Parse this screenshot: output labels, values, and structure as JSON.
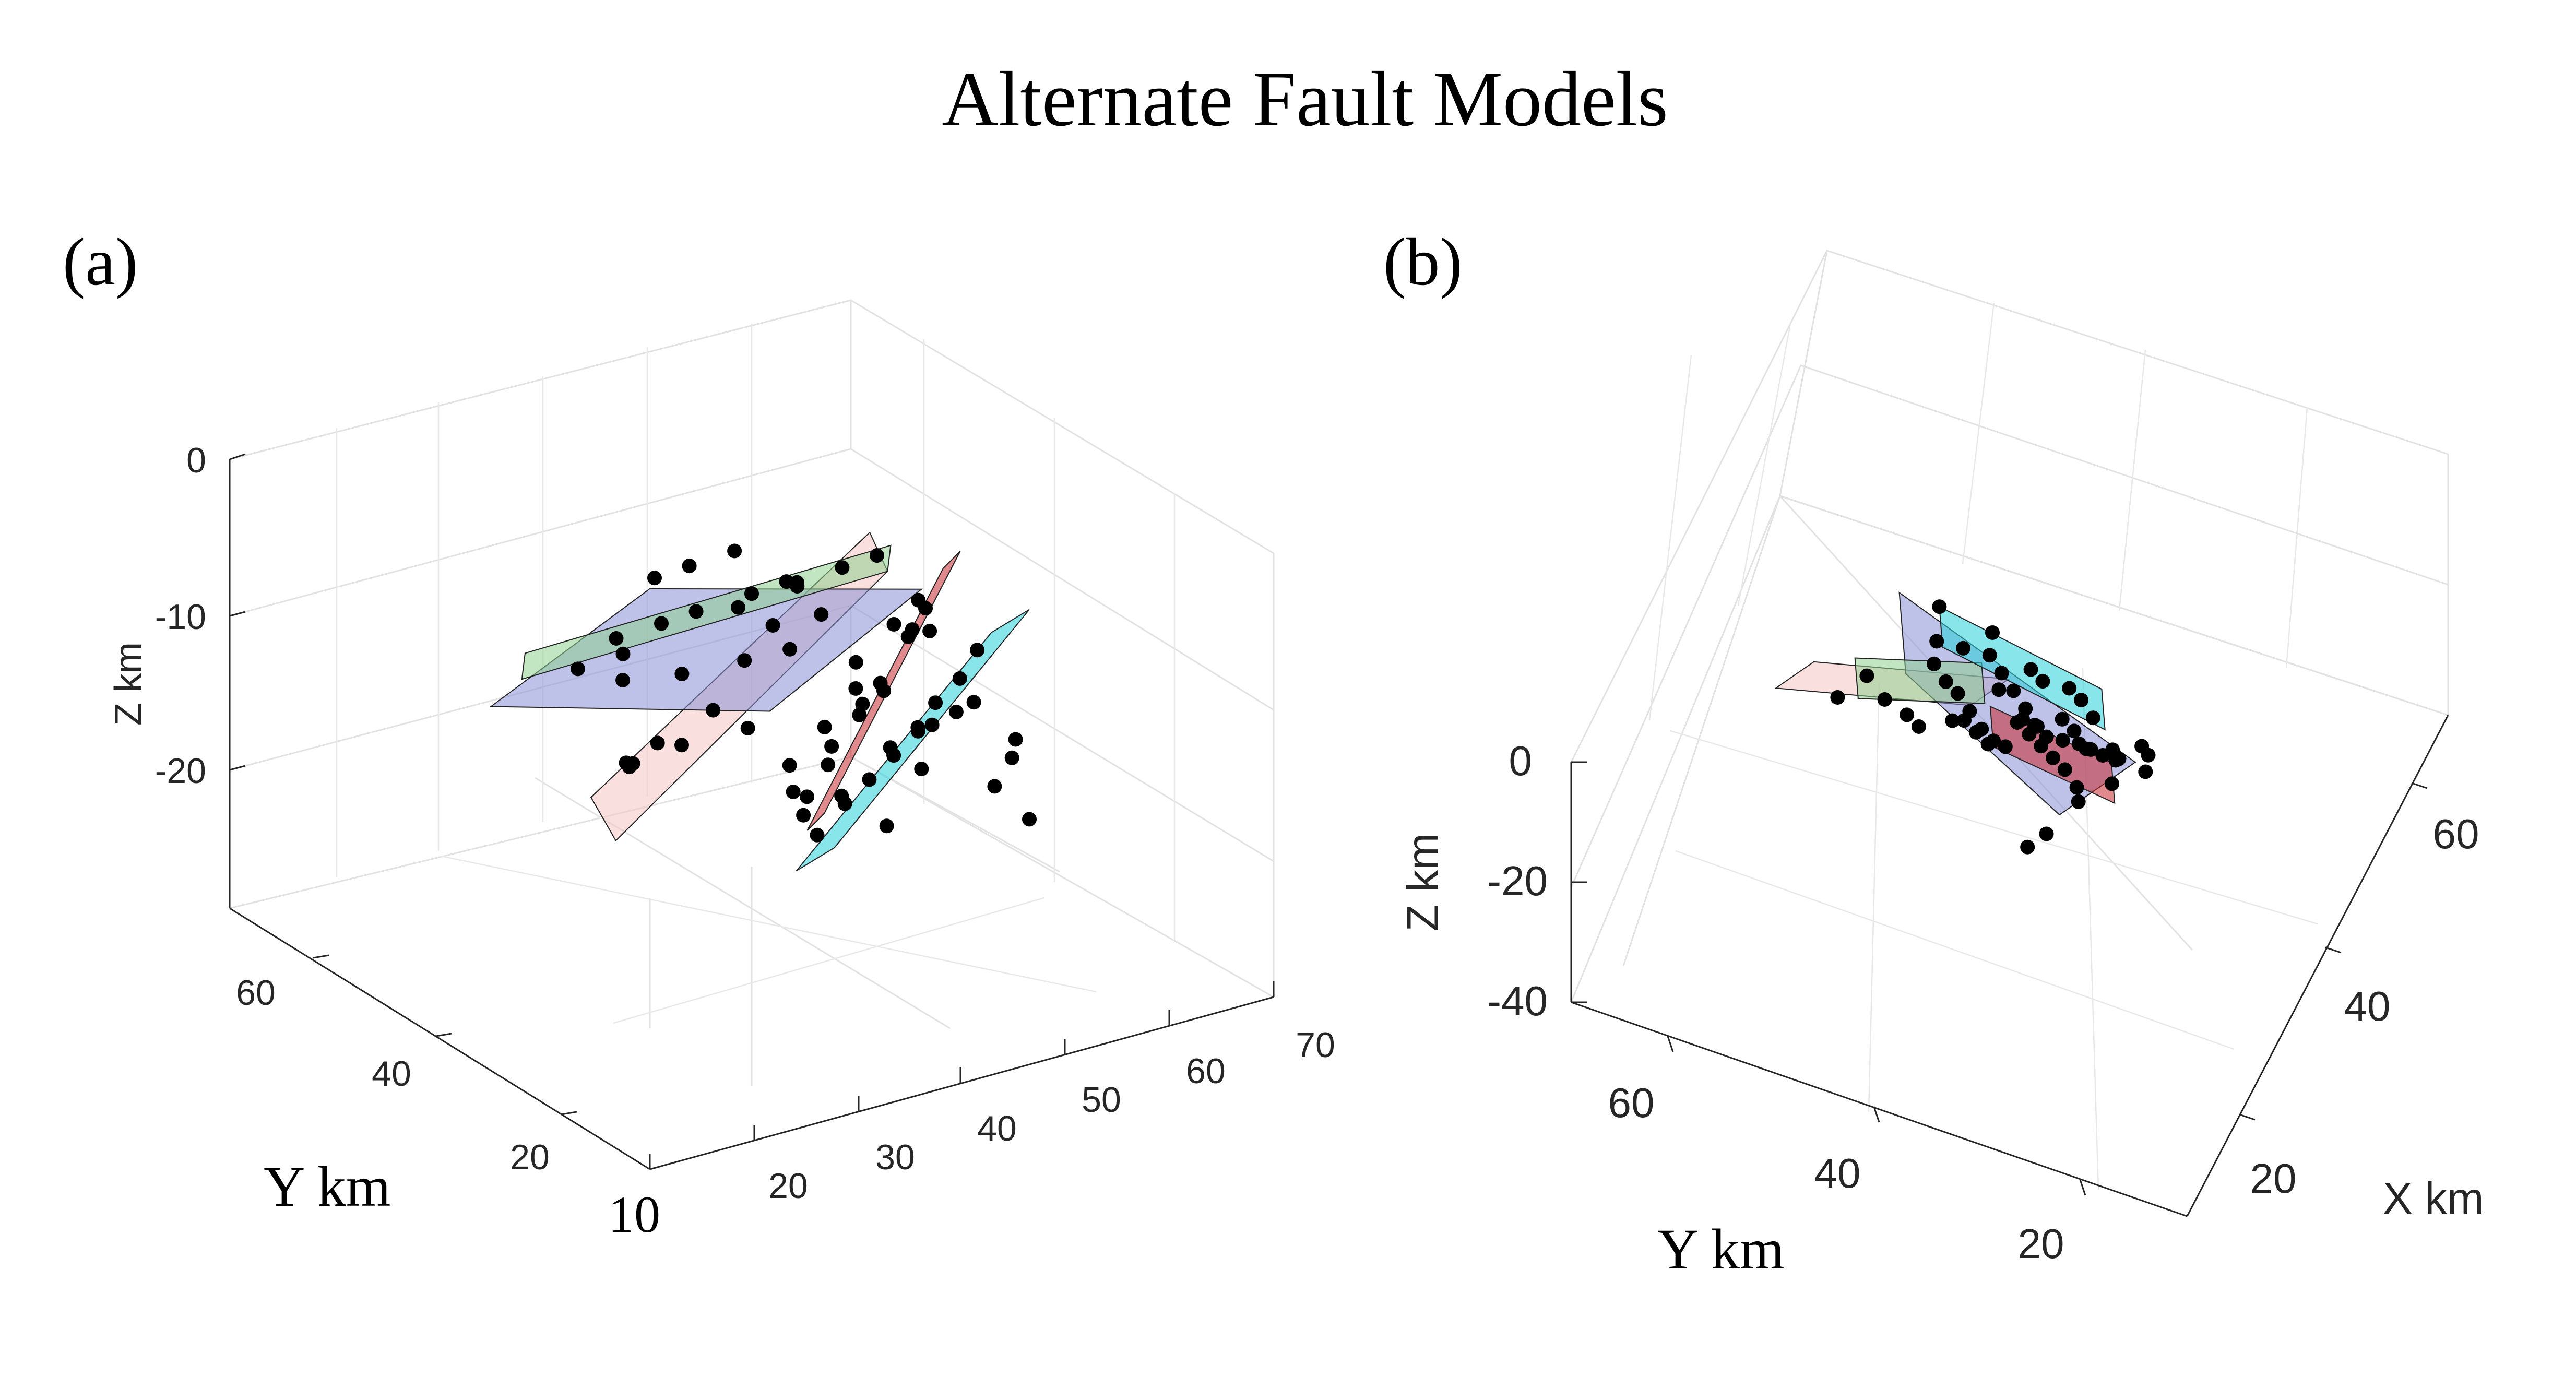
{
  "figure": {
    "title": "Alternate Fault Models"
  },
  "chart_data": [
    {
      "type": "scatter",
      "panel_label": "(a)",
      "view": "3d",
      "xlabel": "",
      "ylabel": "Y km",
      "zlabel": "Z km",
      "x_ticks": [
        "10",
        "20",
        "30",
        "40",
        "50",
        "60",
        "70"
      ],
      "y_ticks": [
        "20",
        "40",
        "60"
      ],
      "z_ticks": [
        "0",
        "-10",
        "-20"
      ],
      "xlim": [
        10,
        70
      ],
      "ylim": [
        10,
        70
      ],
      "zlim": [
        -30,
        0
      ],
      "grid": true,
      "fault_planes": [
        {
          "color": "#f4c7c3",
          "points": [
            [
              35,
              52,
              -5
            ],
            [
              38,
              60,
              -5
            ],
            [
              48,
              35,
              -28
            ],
            [
              45,
              28,
              -28
            ]
          ]
        },
        {
          "color": "#8a8fd6",
          "points": [
            [
              25,
              55,
              -15
            ],
            [
              45,
              62,
              -17
            ],
            [
              55,
              38,
              -22
            ],
            [
              35,
              30,
              -20
            ]
          ]
        },
        {
          "color": "#8fd08f",
          "points": [
            [
              30,
              58,
              -15
            ],
            [
              33,
              62,
              -15
            ],
            [
              48,
              32,
              -28
            ],
            [
              45,
              28,
              -28
            ]
          ]
        },
        {
          "color": "#c9292f",
          "points": [
            [
              44,
              38,
              -8
            ],
            [
              47,
              40,
              -8
            ],
            [
              52,
              28,
              -28
            ],
            [
              49,
              26,
              -28
            ]
          ]
        },
        {
          "color": "#27d0d8",
          "points": [
            [
              47,
              44,
              -3
            ],
            [
              52,
              46,
              -3
            ],
            [
              60,
              30,
              -22
            ],
            [
              55,
              28,
              -22
            ]
          ]
        }
      ],
      "hypocenters": [
        [
          36,
          52,
          -10
        ],
        [
          38,
          54,
          -9
        ],
        [
          40,
          50,
          -11
        ],
        [
          37,
          49,
          -12
        ],
        [
          39,
          56,
          -8
        ],
        [
          41,
          47,
          -14
        ],
        [
          43,
          45,
          -13
        ],
        [
          35,
          51,
          -16
        ],
        [
          38,
          47,
          -17
        ],
        [
          42,
          44,
          -18
        ],
        [
          30,
          50,
          -18
        ],
        [
          33,
          48,
          -19
        ],
        [
          31,
          46,
          -21
        ],
        [
          34,
          44,
          -22
        ],
        [
          36,
          42,
          -23
        ],
        [
          44,
          40,
          -10
        ],
        [
          46,
          38,
          -12
        ],
        [
          45,
          36,
          -14
        ],
        [
          47,
          35,
          -16
        ],
        [
          48,
          33,
          -18
        ],
        [
          46,
          34,
          -20
        ],
        [
          49,
          31,
          -22
        ],
        [
          50,
          30,
          -24
        ],
        [
          47,
          32,
          -19
        ],
        [
          45,
          37,
          -15
        ],
        [
          49,
          44,
          -5
        ],
        [
          51,
          43,
          -7
        ],
        [
          52,
          41,
          -9
        ],
        [
          53,
          39,
          -11
        ],
        [
          54,
          37,
          -13
        ],
        [
          55,
          36,
          -15
        ],
        [
          56,
          34,
          -17
        ],
        [
          57,
          33,
          -19
        ],
        [
          50,
          42,
          -8
        ],
        [
          52,
          38,
          -12
        ],
        [
          54,
          35,
          -14
        ],
        [
          56,
          32,
          -16
        ],
        [
          53,
          40,
          -6
        ],
        [
          55,
          38,
          -10
        ],
        [
          57,
          36,
          -14
        ],
        [
          43,
          39,
          -20
        ],
        [
          44,
          36,
          -23
        ],
        [
          42,
          38,
          -25
        ],
        [
          40,
          40,
          -24
        ],
        [
          41,
          35,
          -26
        ],
        [
          38,
          34,
          -24
        ],
        [
          36,
          36,
          -25
        ],
        [
          39,
          32,
          -27
        ],
        [
          51,
          36,
          -21
        ],
        [
          52,
          34,
          -23
        ],
        [
          48,
          37,
          -17
        ],
        [
          50,
          39,
          -15
        ],
        [
          46,
          41,
          -9
        ],
        [
          47,
          43,
          -7
        ],
        [
          45,
          42,
          -11
        ],
        [
          58,
          32,
          -10
        ],
        [
          59,
          31,
          -12
        ],
        [
          58,
          29,
          -14
        ],
        [
          60,
          30,
          -8
        ],
        [
          56,
          40,
          -12
        ],
        [
          32,
          42,
          -26
        ],
        [
          34,
          40,
          -27
        ],
        [
          37,
          38,
          -28
        ],
        [
          44,
          33,
          -27
        ],
        [
          46,
          31,
          -28
        ],
        [
          42,
          20,
          -27
        ],
        [
          43,
          19,
          -27
        ]
      ]
    },
    {
      "type": "scatter",
      "panel_label": "(b)",
      "view": "3d",
      "xlabel": "X km",
      "ylabel": "Y km",
      "zlabel": "Z km",
      "x_ticks": [
        "20",
        "40",
        "60"
      ],
      "y_ticks": [
        "20",
        "40",
        "60"
      ],
      "z_ticks": [
        "0",
        "-20",
        "-40"
      ],
      "xlim": [
        10,
        70
      ],
      "ylim": [
        10,
        70
      ],
      "zlim": [
        -40,
        0
      ],
      "grid": true,
      "fault_planes": [
        {
          "color": "#f4c7c3",
          "points": [
            [
              48,
              66,
              -2
            ],
            [
              52,
              64,
              -2
            ],
            [
              40,
              40,
              -30
            ],
            [
              36,
              42,
              -30
            ]
          ]
        },
        {
          "color": "#8a8fd6",
          "points": [
            [
              40,
              50,
              -25
            ],
            [
              48,
              54,
              -25
            ],
            [
              36,
              26,
              -30
            ],
            [
              28,
              30,
              -30
            ]
          ]
        },
        {
          "color": "#8fd08f",
          "points": [
            [
              48,
              58,
              -5
            ],
            [
              52,
              60,
              -5
            ],
            [
              48,
              46,
              -18
            ],
            [
              44,
              44,
              -18
            ]
          ]
        },
        {
          "color": "#c9292f",
          "points": [
            [
              46,
              44,
              -8
            ],
            [
              50,
              46,
              -8
            ],
            [
              40,
              30,
              -22
            ],
            [
              36,
              28,
              -22
            ]
          ]
        },
        {
          "color": "#27d0d8",
          "points": [
            [
              58,
              54,
              -2
            ],
            [
              62,
              56,
              -2
            ],
            [
              52,
              36,
              -14
            ],
            [
              48,
              34,
              -14
            ]
          ]
        }
      ],
      "hypocenters": [
        [
          56,
          54,
          -2
        ],
        [
          58,
          52,
          -3
        ],
        [
          60,
          50,
          -4
        ],
        [
          57,
          49,
          -5
        ],
        [
          55,
          47,
          -6
        ],
        [
          53,
          45,
          -7
        ],
        [
          51,
          43,
          -8
        ],
        [
          49,
          41,
          -9
        ],
        [
          50,
          39,
          -10
        ],
        [
          48,
          37,
          -12
        ],
        [
          46,
          35,
          -13
        ],
        [
          52,
          50,
          -5
        ],
        [
          54,
          52,
          -3
        ],
        [
          59,
          55,
          -1
        ],
        [
          62,
          56,
          -2
        ],
        [
          48,
          60,
          -4
        ],
        [
          50,
          58,
          -6
        ],
        [
          47,
          55,
          -8
        ],
        [
          45,
          52,
          -10
        ],
        [
          43,
          50,
          -12
        ],
        [
          46,
          48,
          -10
        ],
        [
          44,
          46,
          -14
        ],
        [
          42,
          44,
          -16
        ],
        [
          40,
          42,
          -18
        ],
        [
          42,
          40,
          -20
        ],
        [
          44,
          42,
          -12
        ],
        [
          46,
          44,
          -9
        ],
        [
          48,
          46,
          -7
        ],
        [
          50,
          48,
          -6
        ],
        [
          52,
          46,
          -8
        ],
        [
          40,
          38,
          -22
        ],
        [
          38,
          36,
          -24
        ],
        [
          36,
          34,
          -26
        ],
        [
          34,
          32,
          -28
        ],
        [
          32,
          30,
          -29
        ],
        [
          42,
          34,
          -20
        ],
        [
          40,
          32,
          -23
        ],
        [
          38,
          30,
          -26
        ],
        [
          37,
          28,
          -28
        ],
        [
          44,
          38,
          -16
        ],
        [
          46,
          40,
          -14
        ],
        [
          48,
          42,
          -11
        ],
        [
          43,
          36,
          -18
        ],
        [
          45,
          32,
          -16
        ],
        [
          47,
          30,
          -15
        ],
        [
          41,
          30,
          -21
        ],
        [
          39,
          26,
          -27
        ],
        [
          36,
          25,
          -29
        ],
        [
          33,
          27,
          -30
        ],
        [
          30,
          29,
          -30
        ],
        [
          54,
          40,
          -9
        ],
        [
          52,
          38,
          -11
        ],
        [
          50,
          36,
          -12
        ],
        [
          55,
          43,
          -7
        ],
        [
          57,
          45,
          -5
        ],
        [
          25,
          30,
          -31
        ],
        [
          23,
          31,
          -31
        ]
      ]
    }
  ]
}
